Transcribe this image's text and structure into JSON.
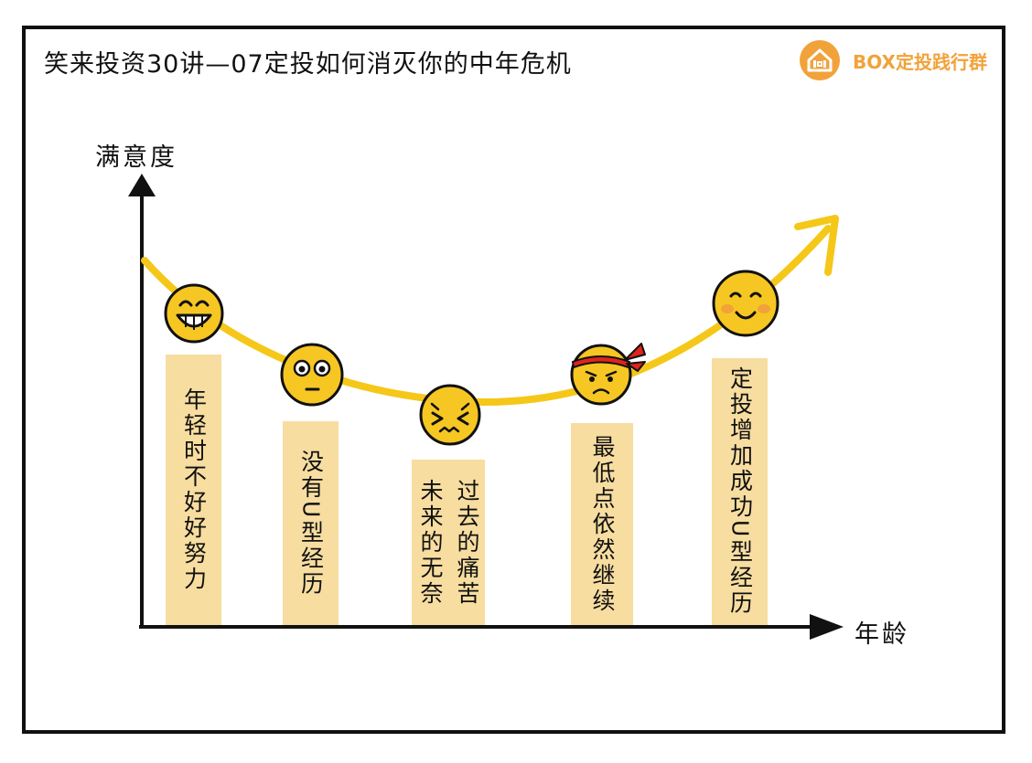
{
  "title": "笑来投资30讲—07定投如何消灭你的中年危机",
  "brand": {
    "name": "BOX定投践行群",
    "color": "#F2A23A"
  },
  "axes": {
    "y_label": "满意度",
    "x_label": "年龄"
  },
  "colors": {
    "curve": "#F5C718",
    "box": "#F7DDA0",
    "face": "#F6C623",
    "outline": "#111111",
    "headband": "#E0241B"
  },
  "stages": [
    {
      "text": "年轻时不好好努力",
      "face": "grinning-face-icon"
    },
    {
      "text": "没有U型经历",
      "face": "surprised-face-icon"
    },
    {
      "text": "未来的无奈过去的痛苦",
      "col1": "未来的无奈",
      "col2": "过去的痛苦",
      "face": "distressed-face-icon"
    },
    {
      "text": "最低点依然继续",
      "face": "determined-face-icon"
    },
    {
      "text": "定投增加成功U型经历",
      "face": "smiling-face-icon"
    }
  ]
}
